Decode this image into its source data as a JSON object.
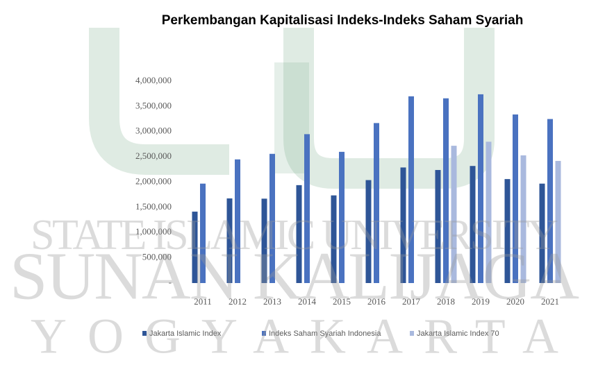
{
  "chart_data": {
    "type": "bar",
    "title": "Perkembangan Kapitalisasi Indeks-Indeks Saham Syariah",
    "categories": [
      "2011",
      "2012",
      "2013",
      "2014",
      "2015",
      "2016",
      "2017",
      "2018",
      "2019",
      "2020",
      "2021"
    ],
    "series": [
      {
        "name": "Jakarta Islamic Index",
        "color": "#2e5597",
        "values": [
          1415000,
          1677000,
          1672000,
          1940000,
          1737000,
          2040000,
          2290000,
          2240000,
          2320000,
          2060000,
          1970000
        ]
      },
      {
        "name": "Indeks Saham Syariah Indonesia",
        "color": "#4a72c0",
        "values": [
          1970000,
          2450000,
          2560000,
          2950000,
          2600000,
          3170000,
          3700000,
          3660000,
          3740000,
          3340000,
          3250000
        ]
      },
      {
        "name": "Jakarta Islamic Index 70",
        "color": "#a9b9de",
        "values": [
          null,
          null,
          null,
          null,
          null,
          null,
          null,
          2720000,
          2800000,
          2530000,
          2420000
        ]
      }
    ],
    "ylim": [
      0,
      4000000
    ],
    "yticks": [
      {
        "value": 0,
        "label": "-"
      },
      {
        "value": 500000,
        "label": "500,000"
      },
      {
        "value": 1000000,
        "label": "1,000,000"
      },
      {
        "value": 1500000,
        "label": "1,500,000"
      },
      {
        "value": 2000000,
        "label": "2,000,000"
      },
      {
        "value": 2500000,
        "label": "2,500,000"
      },
      {
        "value": 3000000,
        "label": "3,000,000"
      },
      {
        "value": 3500000,
        "label": "3,500,000"
      },
      {
        "value": 4000000,
        "label": "4,000,000"
      }
    ],
    "grid": false,
    "legend": "bottom"
  },
  "watermark": {
    "lines": [
      "STATE ISLAMIC UNIVERSITY",
      "SUNAN KALIJAGA",
      "YOGYAKARTA"
    ]
  }
}
